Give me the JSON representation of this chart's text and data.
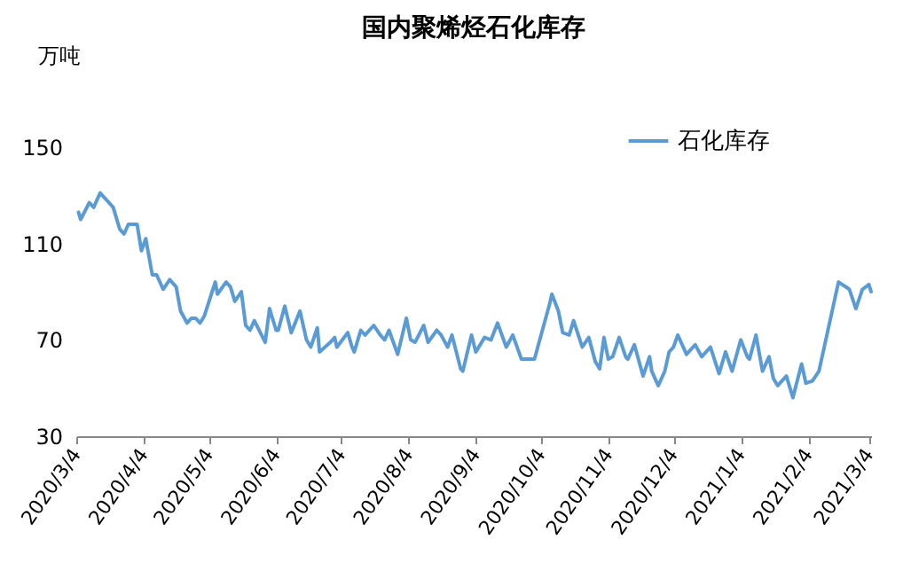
{
  "chart_data": {
    "type": "line",
    "title": "国内聚烯烃石化库存",
    "ylabel": "万吨",
    "legend": "top right",
    "x": [
      "2020-03-05",
      "2020-03-06",
      "2020-03-10",
      "2020-03-12",
      "2020-03-15",
      "2020-03-18",
      "2020-03-21",
      "2020-03-24",
      "2020-03-26",
      "2020-03-28",
      "2020-04-01",
      "2020-04-03",
      "2020-04-05",
      "2020-04-08",
      "2020-04-10",
      "2020-04-13",
      "2020-04-16",
      "2020-04-19",
      "2020-04-21",
      "2020-04-24",
      "2020-04-26",
      "2020-04-28",
      "2020-04-30",
      "2020-05-02",
      "2020-05-07",
      "2020-05-08",
      "2020-05-12",
      "2020-05-14",
      "2020-05-16",
      "2020-05-19",
      "2020-05-21",
      "2020-05-23",
      "2020-05-25",
      "2020-05-30",
      "2020-06-01",
      "2020-06-04",
      "2020-06-05",
      "2020-06-08",
      "2020-06-11",
      "2020-06-15",
      "2020-06-18",
      "2020-06-20",
      "2020-06-23",
      "2020-06-24",
      "2020-06-29",
      "2020-07-01",
      "2020-07-02",
      "2020-07-07",
      "2020-07-09",
      "2020-07-10",
      "2020-07-13",
      "2020-07-15",
      "2020-07-19",
      "2020-07-22",
      "2020-07-24",
      "2020-07-26",
      "2020-07-30",
      "2020-08-03",
      "2020-08-05",
      "2020-08-07",
      "2020-08-11",
      "2020-08-13",
      "2020-08-17",
      "2020-08-19",
      "2020-08-22",
      "2020-08-24",
      "2020-08-28",
      "2020-08-29",
      "2020-09-02",
      "2020-09-04",
      "2020-09-08",
      "2020-09-11",
      "2020-09-14",
      "2020-09-18",
      "2020-09-21",
      "2020-09-25",
      "2020-10-01",
      "2020-10-08",
      "2020-10-09",
      "2020-10-12",
      "2020-10-14",
      "2020-10-17",
      "2020-10-19",
      "2020-10-23",
      "2020-10-26",
      "2020-10-29",
      "2020-10-31",
      "2020-11-02",
      "2020-11-04",
      "2020-11-06",
      "2020-11-09",
      "2020-11-12",
      "2020-11-13",
      "2020-11-16",
      "2020-11-20",
      "2020-11-23",
      "2020-11-24",
      "2020-11-27",
      "2020-11-30",
      "2020-12-02",
      "2020-12-04",
      "2020-12-06",
      "2020-12-10",
      "2020-12-14",
      "2020-12-17",
      "2020-12-21",
      "2020-12-25",
      "2020-12-28",
      "2020-12-31",
      "2021-01-04",
      "2021-01-07",
      "2021-01-08",
      "2021-01-11",
      "2021-01-14",
      "2021-01-17",
      "2021-01-19",
      "2021-01-21",
      "2021-01-25",
      "2021-01-28",
      "2021-02-01",
      "2021-02-03",
      "2021-02-06",
      "2021-02-09",
      "2021-02-18",
      "2021-02-23",
      "2021-02-26",
      "2021-03-01",
      "2021-03-04",
      "2021-03-05"
    ],
    "series": [
      {
        "name": "石化库存",
        "color": "#5b9bd5",
        "values": [
          123,
          120,
          127,
          125,
          131,
          128,
          125,
          116,
          114,
          118,
          118,
          107,
          112,
          97,
          97,
          91,
          95,
          92,
          82,
          77,
          79,
          79,
          77,
          80,
          94,
          89,
          94,
          92,
          86,
          90,
          76,
          74,
          78,
          69,
          83,
          74,
          74,
          84,
          73,
          82,
          70,
          67,
          75,
          65,
          69,
          71,
          67,
          73,
          67,
          65,
          74,
          72,
          76,
          72,
          70,
          74,
          64,
          79,
          70,
          69,
          76,
          69,
          74,
          72,
          67,
          72,
          58,
          57,
          72,
          65,
          71,
          70,
          77,
          67,
          72,
          62,
          62,
          85,
          89,
          82,
          73,
          72,
          78,
          67,
          71,
          61,
          58,
          71,
          62,
          63,
          71,
          63,
          62,
          68,
          55,
          63,
          57,
          51,
          57,
          65,
          67,
          72,
          64,
          68,
          63,
          67,
          56,
          65,
          57,
          70,
          63,
          62,
          72,
          57,
          63,
          54,
          51,
          55,
          46,
          60,
          52,
          53,
          57,
          94,
          91,
          83,
          91,
          93,
          90
        ]
      }
    ],
    "xlim": [
      "2020-03-04",
      "2021-03-05"
    ],
    "xticks": [
      {
        "value": "2020-03-04",
        "label": "2020/3/4"
      },
      {
        "value": "2020-04-04",
        "label": "2020/4/4"
      },
      {
        "value": "2020-05-04",
        "label": "2020/5/4"
      },
      {
        "value": "2020-06-04",
        "label": "2020/6/4"
      },
      {
        "value": "2020-07-04",
        "label": "2020/7/4"
      },
      {
        "value": "2020-08-04",
        "label": "2020/8/4"
      },
      {
        "value": "2020-09-04",
        "label": "2020/9/4"
      },
      {
        "value": "2020-10-04",
        "label": "2020/10/4"
      },
      {
        "value": "2020-11-04",
        "label": "2020/11/4"
      },
      {
        "value": "2020-12-04",
        "label": "2020/12/4"
      },
      {
        "value": "2021-01-04",
        "label": "2021/1/4"
      },
      {
        "value": "2021-02-04",
        "label": "2021/2/4"
      },
      {
        "value": "2021-03-04",
        "label": "2021/3/4"
      }
    ],
    "ylim": [
      30,
      150
    ],
    "yticks": [
      30,
      70,
      110,
      150
    ]
  }
}
